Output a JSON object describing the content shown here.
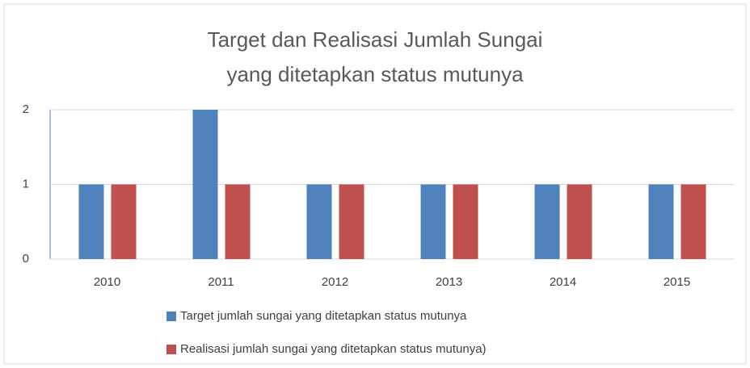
{
  "chart_data": {
    "type": "bar",
    "title": [
      "Target dan Realisasi Jumlah Sungai",
      "yang ditetapkan status mutunya"
    ],
    "categories": [
      "2010",
      "2011",
      "2012",
      "2013",
      "2014",
      "2015"
    ],
    "series": [
      {
        "name": "Target jumlah sungai yang ditetapkan status mutunya",
        "color": "#4f81bd",
        "values": [
          1,
          2,
          1,
          1,
          1,
          1
        ]
      },
      {
        "name": "Realisasi jumlah sungai yang ditetapkan status mutunya)",
        "color": "#c0504d",
        "values": [
          1,
          1,
          1,
          1,
          1,
          1
        ]
      }
    ],
    "ylim": [
      0,
      2
    ],
    "yticks": [
      0,
      1,
      2
    ],
    "grid": true,
    "legend": "bottom"
  }
}
